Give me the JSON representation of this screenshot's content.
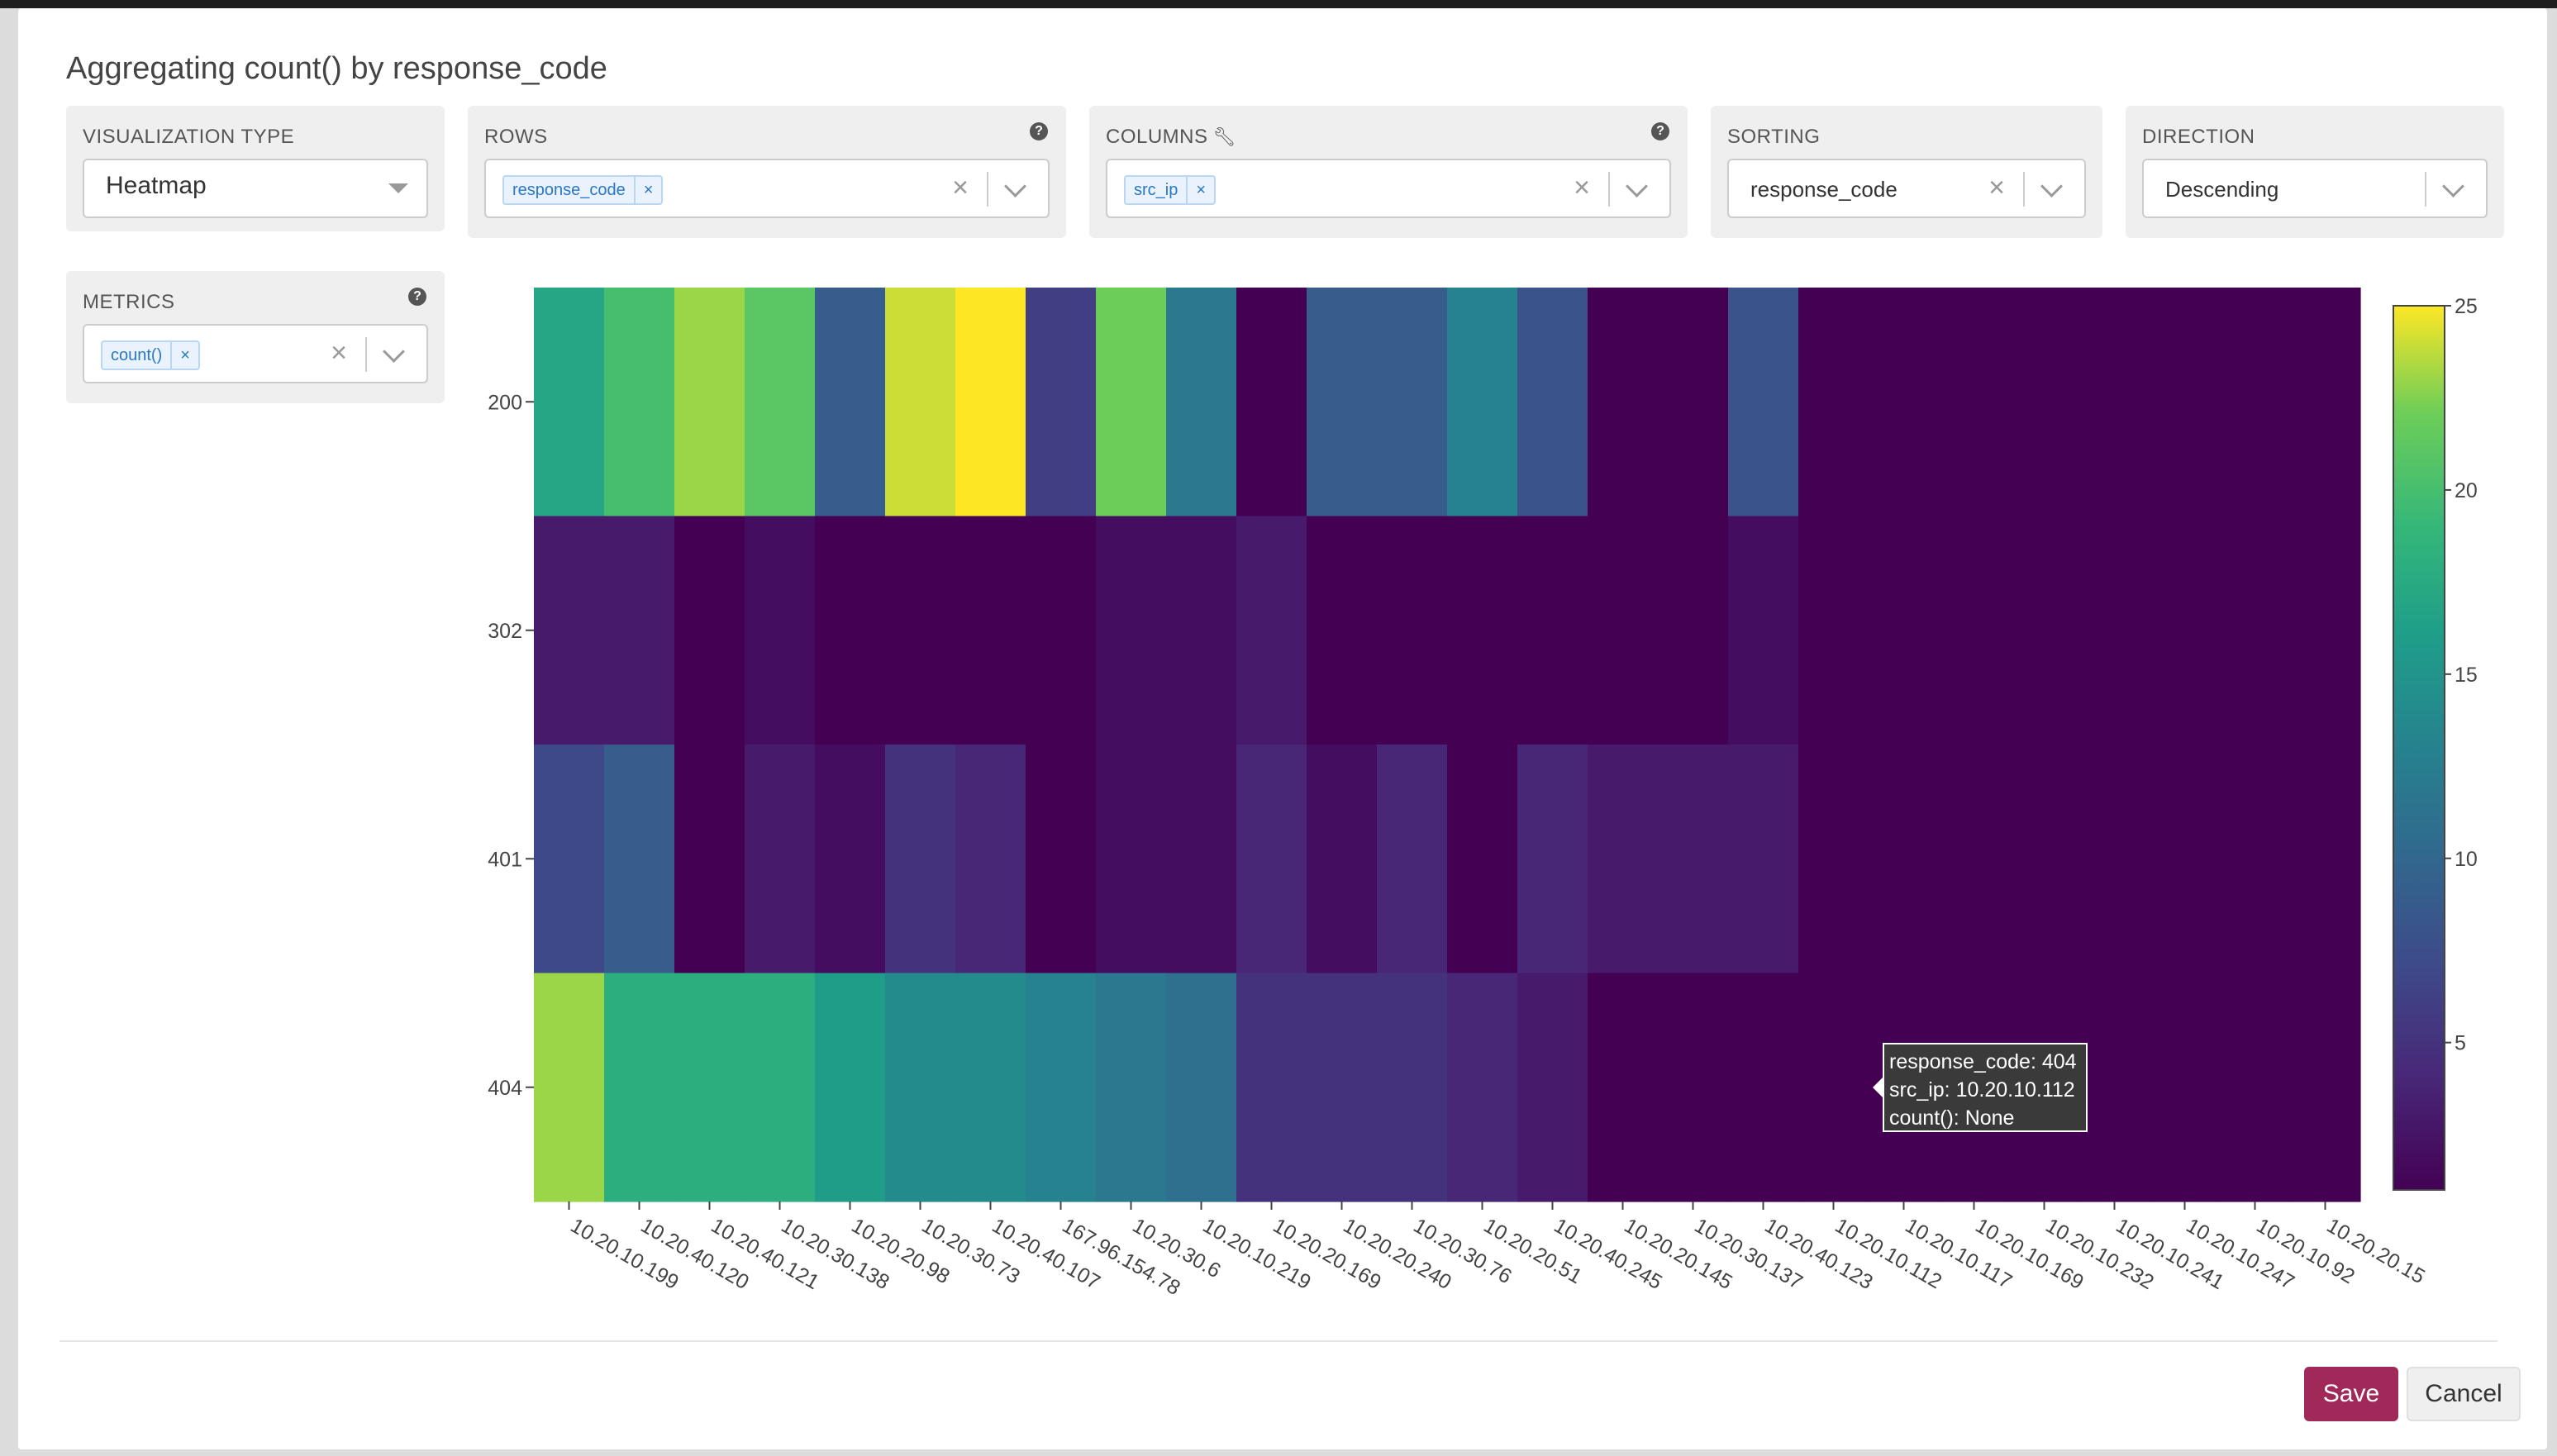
{
  "modal": {
    "title": "Aggregating count() by response_code"
  },
  "controls": {
    "visualization_type": {
      "label": "VISUALIZATION TYPE",
      "value": "Heatmap"
    },
    "rows": {
      "label": "ROWS",
      "tags": [
        "response_code"
      ]
    },
    "columns": {
      "label": "COLUMNS",
      "tags": [
        "src_ip"
      ]
    },
    "sorting": {
      "label": "SORTING",
      "value": "response_code"
    },
    "direction": {
      "label": "DIRECTION",
      "value": "Descending"
    },
    "metrics": {
      "label": "METRICS",
      "tags": [
        "count()"
      ]
    }
  },
  "tooltip": {
    "lines": [
      "response_code: 404",
      "src_ip: 10.20.10.112",
      "count(): None"
    ]
  },
  "footer": {
    "save_label": "Save",
    "cancel_label": "Cancel"
  },
  "colors": {
    "accent": "#a1295a",
    "tag_text": "#2a78c5"
  },
  "chart_data": {
    "type": "heatmap",
    "title": "",
    "xlabel": "",
    "ylabel": "",
    "colorscale": "viridis",
    "zlim": [
      1,
      25
    ],
    "colorbar_ticks": [
      5,
      10,
      15,
      20,
      25
    ],
    "y": [
      "200",
      "302",
      "401",
      "404"
    ],
    "x": [
      "10.20.10.199",
      "10.20.40.120",
      "10.20.40.121",
      "10.20.30.138",
      "10.20.20.98",
      "10.20.30.73",
      "10.20.40.107",
      "167.96.154.78",
      "10.20.30.6",
      "10.20.10.219",
      "10.20.20.169",
      "10.20.20.240",
      "10.20.30.76",
      "10.20.20.51",
      "10.20.40.245",
      "10.20.20.145",
      "10.20.30.137",
      "10.20.40.123",
      "10.20.10.112",
      "10.20.10.117",
      "10.20.10.169",
      "10.20.10.232",
      "10.20.10.241",
      "10.20.10.247",
      "10.20.10.92",
      "10.20.20.15"
    ],
    "z": [
      [
        17,
        20,
        23,
        21,
        9,
        24,
        25,
        6,
        22,
        12,
        1,
        9,
        9,
        13,
        8,
        1,
        1,
        8,
        null,
        null,
        null,
        null,
        null,
        null,
        null,
        null
      ],
      [
        3,
        3,
        1,
        2,
        1,
        1,
        1,
        1,
        2,
        2,
        3,
        1,
        1,
        1,
        1,
        1,
        1,
        2,
        null,
        null,
        null,
        null,
        null,
        null,
        null,
        null
      ],
      [
        7,
        9,
        1,
        3,
        2,
        5,
        4,
        1,
        2,
        2,
        4,
        2,
        4,
        1,
        4,
        3,
        3,
        3,
        null,
        null,
        null,
        null,
        null,
        null,
        null,
        null
      ],
      [
        23,
        18,
        18,
        18,
        16,
        14,
        14,
        13,
        12,
        11,
        5,
        5,
        5,
        4,
        3,
        1,
        1,
        1,
        null,
        null,
        null,
        null,
        null,
        null,
        null,
        null
      ]
    ]
  }
}
